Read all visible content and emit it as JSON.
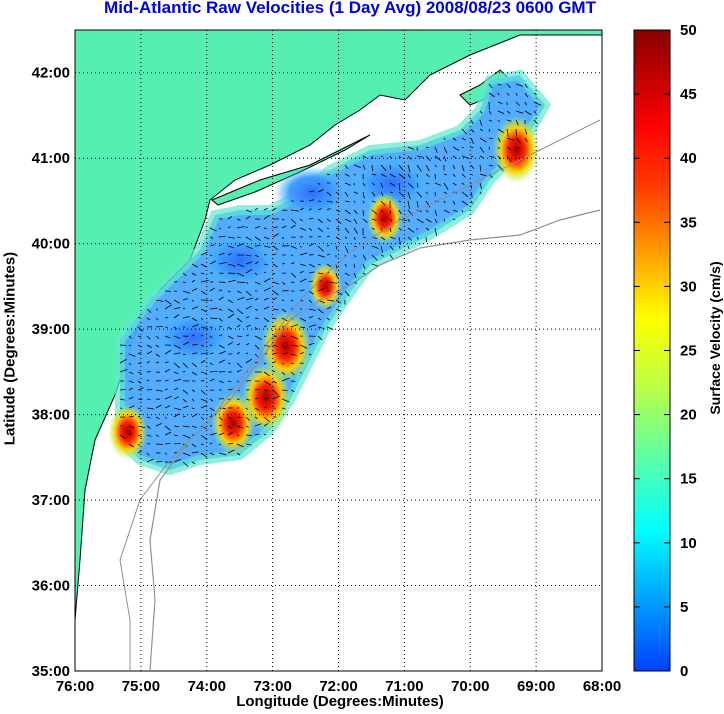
{
  "title": "Mid-Atlantic Raw Velocities (1 Day Avg) 2008/08/23 0600 GMT",
  "colors": {
    "land": "#55f0b0",
    "coast": "#000000",
    "bathy": "#909090",
    "grid": "#000000",
    "title": "#0000e0"
  },
  "chart_data": {
    "type": "heatmap",
    "title": "Mid-Atlantic Raw Velocities (1 Day Avg) 2008/08/23 0600 GMT",
    "xlabel": "Longitude (Degrees:Minutes)",
    "ylabel": "Latitude (Degrees:Minutes)",
    "colorbar_label": "Surface Velocity (cm/s)",
    "xlim": [
      -76,
      -68
    ],
    "ylim": [
      35,
      42.5
    ],
    "clim": [
      0,
      50
    ],
    "grid": "dotted",
    "colormap": "jet",
    "x_ticks": [
      "76:00",
      "75:00",
      "74:00",
      "73:00",
      "72:00",
      "71:00",
      "70:00",
      "69:00",
      "68:00"
    ],
    "y_ticks": [
      "35:00",
      "36:00",
      "37:00",
      "38:00",
      "39:00",
      "40:00",
      "41:00",
      "42:00"
    ],
    "colorbar_ticks": [
      "0",
      "5",
      "10",
      "15",
      "20",
      "25",
      "30",
      "35",
      "40",
      "45",
      "50"
    ],
    "hotspots": [
      {
        "lon": -72.8,
        "lat": 38.8,
        "speed": 50
      },
      {
        "lon": -73.1,
        "lat": 38.2,
        "speed": 48
      },
      {
        "lon": -73.6,
        "lat": 37.9,
        "speed": 42
      },
      {
        "lon": -69.3,
        "lat": 41.1,
        "speed": 47
      },
      {
        "lon": -71.3,
        "lat": 40.3,
        "speed": 32
      },
      {
        "lon": -75.2,
        "lat": 37.8,
        "speed": 36
      },
      {
        "lon": -72.2,
        "lat": 39.5,
        "speed": 28
      }
    ],
    "calm_regions": [
      {
        "lon": -74.2,
        "lat": 38.9,
        "speed": 5
      },
      {
        "lon": -72.4,
        "lat": 40.6,
        "speed": 4
      },
      {
        "lon": -71.2,
        "lat": 40.7,
        "speed": 6
      },
      {
        "lon": -73.5,
        "lat": 39.8,
        "speed": 8
      }
    ]
  }
}
